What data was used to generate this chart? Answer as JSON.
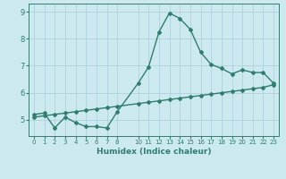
{
  "line1_x": [
    0,
    1,
    2,
    3,
    4,
    5,
    6,
    7,
    8,
    10,
    11,
    12,
    13,
    14,
    15,
    16,
    17,
    18,
    19,
    20,
    21,
    22,
    23
  ],
  "line1_y": [
    5.2,
    5.25,
    4.7,
    5.1,
    4.9,
    4.75,
    4.75,
    4.7,
    5.3,
    6.35,
    6.95,
    8.25,
    8.95,
    8.75,
    8.35,
    7.5,
    7.05,
    6.9,
    6.7,
    6.85,
    6.75,
    6.75,
    6.35
  ],
  "line2_x": [
    0,
    1,
    2,
    3,
    4,
    5,
    6,
    7,
    8,
    10,
    11,
    12,
    13,
    14,
    15,
    16,
    17,
    18,
    19,
    20,
    21,
    22,
    23
  ],
  "line2_y": [
    5.1,
    5.15,
    5.2,
    5.25,
    5.3,
    5.35,
    5.4,
    5.45,
    5.5,
    5.6,
    5.65,
    5.7,
    5.75,
    5.8,
    5.85,
    5.9,
    5.95,
    6.0,
    6.05,
    6.1,
    6.15,
    6.2,
    6.3
  ],
  "line_color": "#2e7d6e",
  "bg_color": "#cce9f0",
  "grid_color": "#aacdd8",
  "xlabel": "Humidex (Indice chaleur)",
  "xlim": [
    -0.5,
    23.5
  ],
  "ylim": [
    4.4,
    9.3
  ],
  "yticks": [
    5,
    6,
    7,
    8,
    9
  ],
  "xticks": [
    0,
    1,
    2,
    3,
    4,
    5,
    6,
    7,
    8,
    10,
    11,
    12,
    13,
    14,
    15,
    16,
    17,
    18,
    19,
    20,
    21,
    22,
    23
  ],
  "marker": "D",
  "markersize": 2.0,
  "linewidth": 1.0,
  "tick_fontsize": 5.0,
  "xlabel_fontsize": 6.5
}
